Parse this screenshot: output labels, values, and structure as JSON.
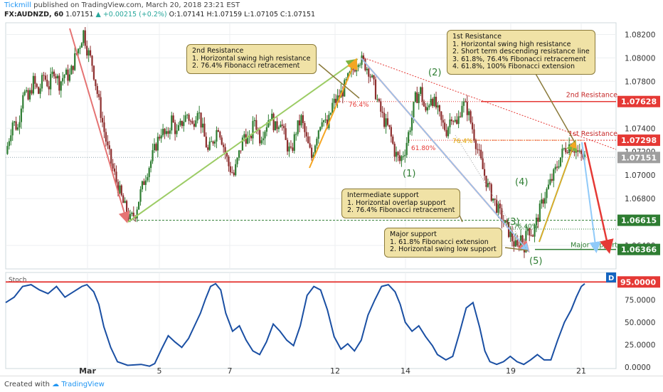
{
  "header": {
    "brand": "Tickmill",
    "published": "published on TradingView.com, March 20, 2018 23:21 EST",
    "symbol": "FX:AUDNZD, 60",
    "last": "1.07151",
    "change": "▲ +0.00215 (+0.2%)",
    "ohlc": "O:1.07141 H:1.07159 L:1.07105 C:1.07151"
  },
  "footer": {
    "created_with": "Created with",
    "tradingview": "TradingView"
  },
  "chart_data": {
    "type": "candlestick",
    "symbol": "FX:AUDNZD",
    "interval": "60",
    "price_axis_ticks": [
      "1.08200",
      "1.08000",
      "1.07800",
      "1.07400",
      "1.07200",
      "1.07000",
      "1.06800",
      "1.06400"
    ],
    "price_range": [
      1.062,
      1.083
    ],
    "time_axis_ticks": [
      "Mar",
      "5",
      "7",
      "12",
      "14",
      "19",
      "21"
    ],
    "price_labels": [
      {
        "text": "1.07628",
        "value": 1.07628,
        "color": "#e53935"
      },
      {
        "text": "1.07298",
        "value": 1.07298,
        "color": "#e53935"
      },
      {
        "text": "1.07151",
        "value": 1.07151,
        "color": "#9e9e9e"
      },
      {
        "text": "1.06615",
        "value": 1.06615,
        "color": "#2e7d32"
      },
      {
        "text": "1.06366",
        "value": 1.06366,
        "color": "#2e7d32"
      }
    ],
    "levels": [
      {
        "name": "2nd Resistance",
        "value": 1.07628,
        "color": "#e53935"
      },
      {
        "name": "1st Resistance",
        "value": 1.07298,
        "color": "#e53935"
      },
      {
        "name": "Major support",
        "value": 1.06366,
        "color": "#2e7d32"
      }
    ],
    "fib_labels": [
      "76.4%",
      "61.80%",
      "76.4%",
      "76.40%"
    ],
    "wave_labels": [
      "(1)",
      "(2)",
      "(3)",
      "(4)",
      "(5)"
    ],
    "annotations": {
      "second_resistance": {
        "title": "2nd Resistance",
        "lines": [
          "1. Horizontal swing high resistance",
          "2. 76.4% Fibonacci retracement"
        ]
      },
      "first_resistance": {
        "title": "1st Resistance",
        "lines": [
          "1. Horizontal swing high resistance",
          "2. Short term descending resistance line",
          "3. 61.8%, 76.4% Fibonacci retracement",
          "4. 61.8%, 100% Fibonacci extension"
        ]
      },
      "intermediate_support": {
        "title": "Intermediate support",
        "lines": [
          "1. Horizontal overlap support",
          "2. 76.4% Fibonacci retracement"
        ]
      },
      "major_support": {
        "title": "Major support",
        "lines": [
          "1. 61.8% Fibonacci extension",
          "2. Horizontal swing low support"
        ]
      }
    },
    "stoch": {
      "label": "Stoch",
      "ticks": [
        "95.0000",
        "75.0000",
        "50.0000",
        "25.0000",
        "0.0000"
      ],
      "range": [
        0,
        100
      ],
      "overbought": 95,
      "values": [
        [
          0,
          72
        ],
        [
          5,
          78
        ],
        [
          10,
          90
        ],
        [
          15,
          92
        ],
        [
          20,
          86
        ],
        [
          25,
          82
        ],
        [
          30,
          90
        ],
        [
          35,
          78
        ],
        [
          40,
          84
        ],
        [
          45,
          90
        ],
        [
          48,
          92
        ],
        [
          52,
          84
        ],
        [
          55,
          70
        ],
        [
          58,
          45
        ],
        [
          62,
          22
        ],
        [
          66,
          6
        ],
        [
          72,
          2
        ],
        [
          80,
          3
        ],
        [
          85,
          1
        ],
        [
          88,
          4
        ],
        [
          92,
          20
        ],
        [
          96,
          35
        ],
        [
          100,
          28
        ],
        [
          104,
          22
        ],
        [
          108,
          32
        ],
        [
          112,
          48
        ],
        [
          115,
          60
        ],
        [
          118,
          76
        ],
        [
          121,
          90
        ],
        [
          124,
          93
        ],
        [
          127,
          86
        ],
        [
          130,
          60
        ],
        [
          134,
          40
        ],
        [
          138,
          46
        ],
        [
          142,
          30
        ],
        [
          146,
          18
        ],
        [
          150,
          14
        ],
        [
          154,
          28
        ],
        [
          158,
          48
        ],
        [
          162,
          40
        ],
        [
          166,
          30
        ],
        [
          170,
          24
        ],
        [
          174,
          46
        ],
        [
          178,
          80
        ],
        [
          182,
          90
        ],
        [
          186,
          86
        ],
        [
          190,
          64
        ],
        [
          194,
          34
        ],
        [
          198,
          20
        ],
        [
          202,
          26
        ],
        [
          206,
          18
        ],
        [
          210,
          30
        ],
        [
          214,
          58
        ],
        [
          218,
          75
        ],
        [
          222,
          90
        ],
        [
          226,
          92
        ],
        [
          230,
          84
        ],
        [
          233,
          70
        ],
        [
          236,
          50
        ],
        [
          240,
          40
        ],
        [
          244,
          46
        ],
        [
          248,
          34
        ],
        [
          252,
          24
        ],
        [
          255,
          14
        ],
        [
          260,
          8
        ],
        [
          264,
          12
        ],
        [
          268,
          38
        ],
        [
          272,
          66
        ],
        [
          276,
          72
        ],
        [
          280,
          44
        ],
        [
          283,
          18
        ],
        [
          286,
          6
        ],
        [
          290,
          3
        ],
        [
          294,
          6
        ],
        [
          298,
          12
        ],
        [
          302,
          6
        ],
        [
          306,
          3
        ],
        [
          310,
          8
        ],
        [
          314,
          14
        ],
        [
          318,
          8
        ],
        [
          322,
          8
        ],
        [
          326,
          30
        ],
        [
          330,
          50
        ],
        [
          334,
          64
        ],
        [
          337,
          78
        ],
        [
          340,
          90
        ],
        [
          342,
          93
        ]
      ]
    },
    "price_path": [
      [
        0,
        1.0718
      ],
      [
        4,
        1.0746
      ],
      [
        7,
        1.074
      ],
      [
        10,
        1.0772
      ],
      [
        13,
        1.0764
      ],
      [
        16,
        1.078
      ],
      [
        19,
        1.077
      ],
      [
        22,
        1.0785
      ],
      [
        25,
        1.0776
      ],
      [
        28,
        1.079
      ],
      [
        31,
        1.0778
      ],
      [
        34,
        1.0786
      ],
      [
        37,
        1.0784
      ],
      [
        40,
        1.08
      ],
      [
        43,
        1.0812
      ],
      [
        45,
        1.0822
      ],
      [
        47,
        1.0808
      ],
      [
        50,
        1.0795
      ],
      [
        53,
        1.077
      ],
      [
        56,
        1.0745
      ],
      [
        59,
        1.0722
      ],
      [
        62,
        1.0705
      ],
      [
        65,
        1.069
      ],
      [
        68,
        1.0676
      ],
      [
        72,
        1.0662
      ],
      [
        75,
        1.0668
      ],
      [
        78,
        1.0685
      ],
      [
        81,
        1.07
      ],
      [
        84,
        1.0712
      ],
      [
        87,
        1.0726
      ],
      [
        90,
        1.0738
      ],
      [
        93,
        1.0732
      ],
      [
        96,
        1.0748
      ],
      [
        99,
        1.0735
      ],
      [
        102,
        1.0745
      ],
      [
        105,
        1.0752
      ],
      [
        108,
        1.0742
      ],
      [
        111,
        1.0758
      ],
      [
        114,
        1.0738
      ],
      [
        117,
        1.072
      ],
      [
        120,
        1.073
      ],
      [
        123,
        1.0742
      ],
      [
        126,
        1.0725
      ],
      [
        129,
        1.0708
      ],
      [
        132,
        1.07
      ],
      [
        135,
        1.0718
      ],
      [
        138,
        1.0735
      ],
      [
        141,
        1.0728
      ],
      [
        144,
        1.0748
      ],
      [
        147,
        1.0732
      ],
      [
        150,
        1.074
      ],
      [
        153,
        1.0752
      ],
      [
        156,
        1.074
      ],
      [
        159,
        1.0748
      ],
      [
        162,
        1.0728
      ],
      [
        165,
        1.0718
      ],
      [
        168,
        1.0738
      ],
      [
        171,
        1.0748
      ],
      [
        174,
        1.073
      ],
      [
        177,
        1.0715
      ],
      [
        180,
        1.0735
      ],
      [
        183,
        1.075
      ],
      [
        186,
        1.074
      ],
      [
        189,
        1.076
      ],
      [
        192,
        1.0765
      ],
      [
        195,
        1.0772
      ],
      [
        198,
        1.0782
      ],
      [
        201,
        1.079
      ],
      [
        204,
        1.08
      ],
      [
        207,
        1.0796
      ],
      [
        210,
        1.079
      ],
      [
        213,
        1.0776
      ],
      [
        216,
        1.0758
      ],
      [
        219,
        1.0746
      ],
      [
        222,
        1.0738
      ],
      [
        225,
        1.072
      ],
      [
        228,
        1.0712
      ],
      [
        231,
        1.0722
      ],
      [
        234,
        1.0742
      ],
      [
        237,
        1.0765
      ],
      [
        240,
        1.0772
      ],
      [
        243,
        1.0752
      ],
      [
        246,
        1.0768
      ],
      [
        249,
        1.0758
      ],
      [
        252,
        1.0745
      ],
      [
        255,
        1.0738
      ],
      [
        258,
        1.0752
      ],
      [
        261,
        1.0742
      ],
      [
        264,
        1.0762
      ],
      [
        267,
        1.0756
      ],
      [
        270,
        1.074
      ],
      [
        273,
        1.0722
      ],
      [
        276,
        1.0705
      ],
      [
        279,
        1.069
      ],
      [
        282,
        1.068
      ],
      [
        285,
        1.067
      ],
      [
        288,
        1.066
      ],
      [
        291,
        1.0652
      ],
      [
        294,
        1.0642
      ],
      [
        296,
        1.0637
      ],
      [
        298,
        1.0648
      ],
      [
        300,
        1.064
      ],
      [
        302,
        1.0655
      ],
      [
        305,
        1.065
      ],
      [
        308,
        1.0665
      ],
      [
        311,
        1.068
      ],
      [
        314,
        1.069
      ],
      [
        317,
        1.07
      ],
      [
        320,
        1.0712
      ],
      [
        323,
        1.0722
      ],
      [
        326,
        1.0726
      ],
      [
        329,
        1.0723
      ],
      [
        332,
        1.0717
      ],
      [
        335,
        1.0715
      ]
    ]
  }
}
